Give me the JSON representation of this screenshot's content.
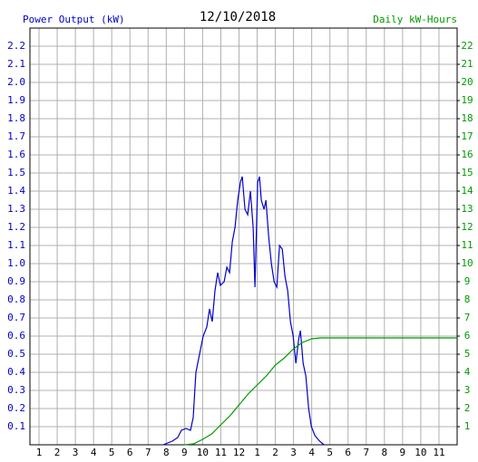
{
  "chart_data": {
    "type": "line",
    "title": "12/10/2018",
    "y_label": "Power Output (kW)",
    "y2_label": "Daily kW-Hours",
    "xlim": [
      0.5,
      24
    ],
    "xticks": [
      1,
      2,
      3,
      4,
      5,
      6,
      7,
      8,
      9,
      10,
      11,
      12,
      {
        "value": 13,
        "label": "1"
      },
      {
        "value": 14,
        "label": "2"
      },
      {
        "value": 15,
        "label": "3"
      },
      {
        "value": 16,
        "label": "4"
      },
      {
        "value": 17,
        "label": "5"
      },
      {
        "value": 18,
        "label": "6"
      },
      {
        "value": 19,
        "label": "7"
      },
      {
        "value": 20,
        "label": "8"
      },
      {
        "value": 21,
        "label": "9"
      },
      {
        "value": 22,
        "label": "10"
      },
      {
        "value": 23,
        "label": "11"
      }
    ],
    "ylim": [
      0,
      2.3
    ],
    "yticks": [
      0.1,
      0.2,
      0.3,
      0.4,
      0.5,
      0.6,
      0.7,
      0.8,
      0.9,
      {
        "value": 1,
        "label": "1.0"
      },
      1.1,
      1.2,
      1.3,
      1.4,
      1.5,
      1.6,
      1.7,
      1.8,
      1.9,
      {
        "value": 2,
        "label": "2.0"
      },
      2.1,
      2.2
    ],
    "y2lim": [
      0,
      23
    ],
    "y2ticks": [
      1,
      2,
      3,
      4,
      5,
      6,
      7,
      8,
      9,
      10,
      11,
      12,
      13,
      14,
      15,
      16,
      17,
      18,
      19,
      20,
      21,
      22
    ],
    "grid": true,
    "series": [
      {
        "color": "#0000cc",
        "x": [
          7.83,
          8.33,
          8.63,
          8.83,
          9.08,
          9.33,
          9.48,
          9.63,
          9.83,
          10.03,
          10.23,
          10.38,
          10.53,
          10.68,
          10.83,
          10.98,
          11.18,
          11.33,
          11.48,
          11.63,
          11.78,
          11.93,
          12.08,
          12.18,
          12.33,
          12.48,
          12.63,
          12.78,
          12.88,
          13.03,
          13.13,
          13.23,
          13.38,
          13.48,
          13.63,
          13.78,
          13.93,
          14.08,
          14.23,
          14.38,
          14.53,
          14.68,
          14.83,
          14.98,
          15.13,
          15.28,
          15.38,
          15.53,
          15.68,
          15.83,
          15.98,
          16.18,
          16.43,
          16.68
        ],
        "values": [
          0,
          0.02,
          0.04,
          0.08,
          0.09,
          0.08,
          0.15,
          0.4,
          0.5,
          0.6,
          0.65,
          0.75,
          0.68,
          0.85,
          0.95,
          0.88,
          0.9,
          0.98,
          0.95,
          1.12,
          1.2,
          1.35,
          1.45,
          1.48,
          1.3,
          1.27,
          1.4,
          1.2,
          0.87,
          1.45,
          1.48,
          1.35,
          1.3,
          1.35,
          1.15,
          1.0,
          0.9,
          0.87,
          1.1,
          1.08,
          0.93,
          0.85,
          0.68,
          0.6,
          0.45,
          0.58,
          0.63,
          0.45,
          0.38,
          0.2,
          0.1,
          0.05,
          0.02,
          0
        ]
      },
      {
        "color": "#009900",
        "axis": "y2",
        "x": [
          9.0,
          9.5,
          10,
          10.5,
          11,
          11.5,
          12,
          12.5,
          13,
          13.5,
          14,
          14.5,
          15,
          15.5,
          16,
          16.5,
          24
        ],
        "values": [
          0,
          0.05,
          0.3,
          0.6,
          1.1,
          1.6,
          2.2,
          2.8,
          3.3,
          3.8,
          4.4,
          4.8,
          5.3,
          5.65,
          5.85,
          5.9,
          5.9
        ]
      }
    ]
  }
}
